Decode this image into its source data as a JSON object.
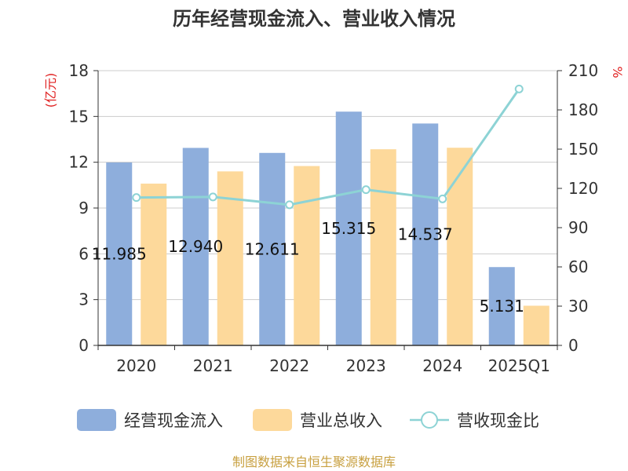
{
  "chart_data": {
    "type": "bar",
    "title": "历年经营现金流入、营业收入情况",
    "categories": [
      "2020",
      "2021",
      "2022",
      "2023",
      "2024",
      "2025Q1"
    ],
    "y_left": {
      "unit": "(亿元)",
      "ylim": [
        0,
        18
      ],
      "ticks": [
        0,
        3,
        6,
        9,
        12,
        15,
        18
      ]
    },
    "y_right": {
      "unit": "%",
      "ylim": [
        0,
        210
      ],
      "ticks": [
        0,
        30,
        60,
        90,
        120,
        150,
        180,
        210
      ]
    },
    "grid": true,
    "legend_position": "bottom",
    "series": [
      {
        "name": "经营现金流入",
        "type": "bar",
        "axis": "left",
        "color": "#8eaedc",
        "values": [
          11.985,
          12.94,
          12.611,
          15.315,
          14.537,
          5.131
        ],
        "labels": [
          "11.985",
          "12.940",
          "12.611",
          "15.315",
          "14.537",
          "5.131"
        ]
      },
      {
        "name": "营业总收入",
        "type": "bar",
        "axis": "left",
        "color": "#fdd99b",
        "values": [
          10.6,
          11.4,
          11.75,
          12.85,
          12.95,
          2.6
        ]
      },
      {
        "name": "营收现金比",
        "type": "line",
        "axis": "right",
        "color": "#8dd3d5",
        "values": [
          113,
          113.5,
          107.5,
          119,
          112,
          196
        ]
      }
    ]
  },
  "source_text": "制图数据来自恒生聚源数据库"
}
